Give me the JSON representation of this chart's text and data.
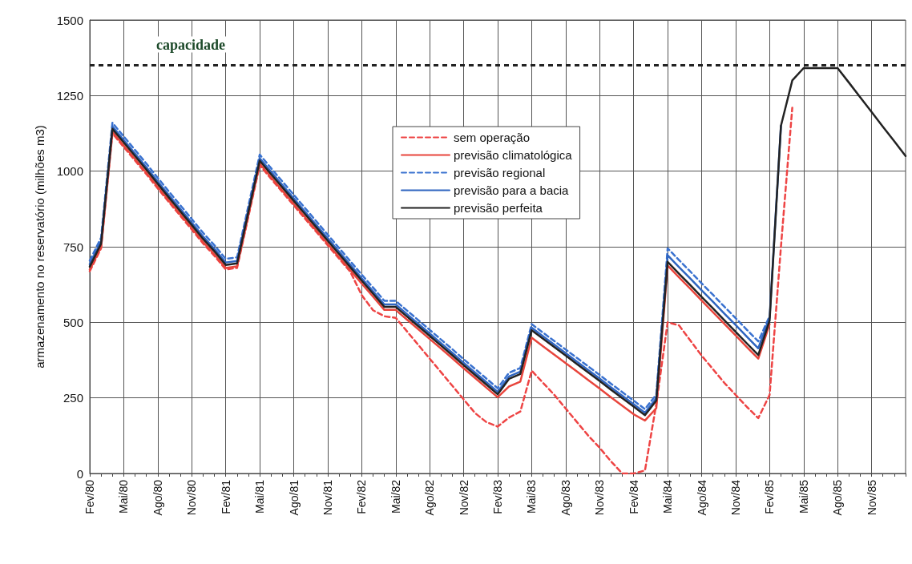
{
  "chart_data": {
    "type": "line",
    "ylabel": "armazenamento no reservatório (milhões m3)",
    "categories": [
      "Fev/80",
      null,
      null,
      "Mai/80",
      null,
      null,
      "Ago/80",
      null,
      null,
      "Nov/80",
      null,
      null,
      "Fev/81",
      null,
      null,
      "Mai/81",
      null,
      null,
      "Ago/81",
      null,
      null,
      "Nov/81",
      null,
      null,
      "Fev/82",
      null,
      null,
      "Mai/82",
      null,
      null,
      "Ago/82",
      null,
      null,
      "Nov/82",
      null,
      null,
      "Fev/83",
      null,
      null,
      "Mai/83",
      null,
      null,
      "Ago/83",
      null,
      null,
      "Nov/83",
      null,
      null,
      "Fev/84",
      null,
      null,
      "Mai/84",
      null,
      null,
      "Ago/84",
      null,
      null,
      "Nov/84",
      null,
      null,
      "Fev/85",
      null,
      null,
      "Mai/85",
      null,
      null,
      "Ago/85",
      null,
      null,
      "Nov/85",
      null,
      null,
      null
    ],
    "series": [
      {
        "name": "sem operação",
        "color": "#ee4444",
        "line_style": "dashed",
        "values": [
          669,
          745,
          1125,
          1080,
          1035,
          990,
          943,
          897,
          852,
          807,
          761,
          720,
          675,
          680,
          850,
          1020,
          975,
          931,
          887,
          843,
          799,
          755,
          711,
          667,
          590,
          540,
          520,
          515,
          470,
          425,
          380,
          335,
          290,
          245,
          200,
          170,
          155,
          185,
          205,
          340,
          300,
          260,
          215,
          170,
          125,
          85,
          40,
          0,
          0,
          10,
          230,
          500,
          490,
          440,
          390,
          345,
          300,
          260,
          220,
          183,
          260,
          750,
          1210,
          null,
          null,
          null,
          null,
          null,
          null,
          null,
          null,
          null,
          null
        ]
      },
      {
        "name": "previsão climatológica",
        "color": "#e8453c",
        "line_style": "solid",
        "values": [
          674,
          750,
          1130,
          1085,
          1040,
          995,
          948,
          902,
          857,
          812,
          766,
          725,
          680,
          685,
          855,
          1025,
          980,
          936,
          892,
          848,
          804,
          760,
          716,
          672,
          628,
          585,
          541,
          541,
          509,
          477,
          445,
          413,
          381,
          348,
          316,
          284,
          252,
          288,
          304,
          449,
          421,
          393,
          365,
          337,
          309,
          281,
          252,
          224,
          196,
          175,
          216,
          688,
          649,
          611,
          572,
          534,
          495,
          457,
          418,
          380,
          494,
          null,
          null,
          null,
          null,
          null,
          null,
          null,
          null,
          null,
          null,
          null,
          null
        ]
      },
      {
        "name": "previsão regional",
        "color": "#3a72d0",
        "line_style": "dashed",
        "values": [
          704,
          780,
          1160,
          1115,
          1070,
          1025,
          978,
          932,
          887,
          842,
          796,
          755,
          710,
          715,
          885,
          1055,
          1010,
          966,
          922,
          878,
          834,
          790,
          746,
          702,
          658,
          615,
          571,
          571,
          539,
          507,
          475,
          443,
          411,
          378,
          346,
          314,
          282,
          333,
          349,
          494,
          466,
          438,
          410,
          382,
          354,
          326,
          297,
          269,
          241,
          213,
          261,
          745,
          706,
          668,
          629,
          591,
          552,
          514,
          475,
          437,
          521,
          null,
          null,
          null,
          null,
          null,
          null,
          null,
          null,
          null,
          null,
          null,
          null
        ]
      },
      {
        "name": "previsão para a bacia",
        "color": "#2f65c0",
        "line_style": "solid",
        "values": [
          692,
          768,
          1148,
          1103,
          1058,
          1013,
          966,
          920,
          875,
          830,
          784,
          743,
          698,
          703,
          873,
          1043,
          998,
          954,
          910,
          866,
          822,
          778,
          734,
          690,
          646,
          603,
          559,
          559,
          527,
          495,
          463,
          431,
          399,
          366,
          334,
          302,
          270,
          321,
          337,
          482,
          454,
          426,
          398,
          370,
          342,
          314,
          285,
          257,
          229,
          201,
          249,
          722,
          683,
          645,
          606,
          568,
          529,
          491,
          452,
          414,
          516,
          1150,
          null,
          null,
          null,
          null,
          null,
          null,
          null,
          null,
          null,
          null,
          null
        ]
      },
      {
        "name": "previsão perfeita",
        "color": "#222222",
        "line_style": "solid",
        "values": [
          684,
          760,
          1140,
          1095,
          1050,
          1005,
          958,
          912,
          867,
          822,
          776,
          735,
          690,
          695,
          865,
          1035,
          990,
          946,
          902,
          858,
          814,
          770,
          726,
          682,
          638,
          595,
          551,
          551,
          519,
          487,
          455,
          423,
          391,
          358,
          326,
          294,
          262,
          313,
          329,
          474,
          446,
          418,
          390,
          362,
          334,
          306,
          277,
          249,
          221,
          193,
          241,
          700,
          661,
          623,
          584,
          546,
          507,
          469,
          430,
          392,
          506,
          1150,
          1300,
          1341,
          1341,
          1341,
          1341,
          1293,
          1244,
          1196,
          1147,
          1099,
          1050
        ]
      }
    ],
    "ylim": [
      0,
      1500
    ],
    "yticks": [
      0,
      250,
      500,
      750,
      1000,
      1250,
      1500
    ],
    "ref_lines": [
      {
        "axis": "y",
        "value": 1350,
        "label": "capacidade",
        "color": "#222222",
        "line_style": "dashed"
      }
    ],
    "grid": true,
    "legend": "top",
    "marker": "none"
  }
}
